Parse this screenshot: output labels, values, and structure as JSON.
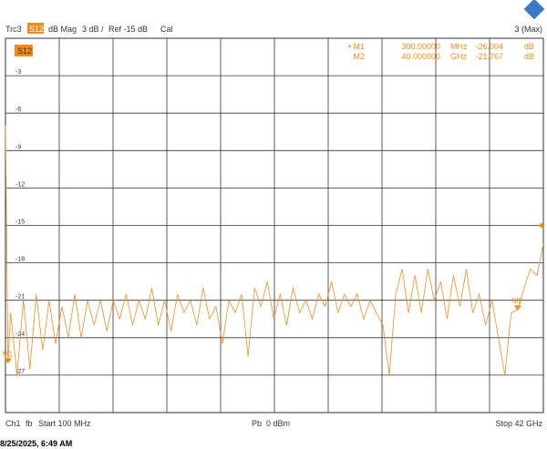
{
  "chart_data": {
    "type": "line",
    "header": {
      "trace": "Trc3",
      "param": "S12",
      "format": "dB Mag",
      "scale": "3 dB /",
      "ref": "Ref -15 dB",
      "cal": "Cal",
      "right": "3 (Max)"
    },
    "trace_label": "S12",
    "ref_level": -15,
    "color": "#f08c1e",
    "xlim": [
      0.1,
      42
    ],
    "ylim": [
      -30,
      0
    ],
    "yticks": [
      -3,
      -6,
      -9,
      -12,
      -15,
      -18,
      -21,
      -24,
      -27
    ],
    "grid_divisions": 10,
    "x": [
      0.1,
      0.3,
      0.5,
      1,
      1.5,
      2,
      2.5,
      3,
      3.5,
      4,
      4.5,
      5,
      5.5,
      6,
      6.5,
      7,
      7.5,
      8,
      8.5,
      9,
      9.5,
      10,
      10.5,
      11,
      11.5,
      12,
      12.5,
      13,
      13.5,
      14,
      14.5,
      15,
      15.5,
      16,
      16.5,
      17,
      17.5,
      18,
      18.5,
      19,
      19.5,
      20,
      20.5,
      21,
      21.5,
      22,
      22.5,
      23,
      23.5,
      24,
      24.5,
      25,
      25.5,
      26,
      26.5,
      27,
      27.5,
      28,
      28.5,
      29,
      29.5,
      30,
      30.5,
      31,
      31.5,
      32,
      32.5,
      33,
      33.5,
      34,
      34.5,
      35,
      35.5,
      36,
      36.5,
      37,
      37.5,
      38,
      38.5,
      39,
      39.5,
      40,
      40.5,
      41,
      41.5,
      42
    ],
    "values": [
      -7,
      -26,
      -22,
      -27,
      -21,
      -26.5,
      -20.5,
      -25,
      -21,
      -24.5,
      -21.5,
      -24,
      -20.5,
      -24,
      -21,
      -23,
      -21,
      -23.5,
      -21,
      -22.5,
      -20.5,
      -23,
      -21,
      -22.5,
      -20,
      -23,
      -21,
      -23.5,
      -20.5,
      -22,
      -21,
      -23,
      -20,
      -22.5,
      -21.5,
      -24.5,
      -21,
      -22,
      -20.5,
      -25.5,
      -20,
      -21.5,
      -19.5,
      -22.5,
      -20.5,
      -23,
      -20,
      -22,
      -21,
      -22.5,
      -20.5,
      -21.5,
      -19.5,
      -22,
      -20.5,
      -21.5,
      -20.5,
      -22.5,
      -21,
      -22,
      -23,
      -27,
      -20.5,
      -18.5,
      -22,
      -19,
      -22,
      -18.5,
      -21,
      -19.5,
      -22.5,
      -19,
      -21.5,
      -18.5,
      -22,
      -20.5,
      -23,
      -21,
      -24,
      -27,
      -22,
      -21.767,
      -20,
      -18.5,
      -19,
      -16.5
    ],
    "markers": [
      {
        "name": "M1",
        "x": 0.3,
        "y": -26.004
      },
      {
        "name": "M2",
        "x": 40,
        "y": -21.767
      }
    ],
    "marker_table": [
      [
        "• M1",
        "300.00000",
        "MHz",
        "-26.004",
        "dB"
      ],
      [
        "M2",
        "40.000000",
        "GHz",
        "-21.767",
        "dB"
      ]
    ],
    "footer": {
      "ch": "Ch1",
      "fb": "fb",
      "start": "Start 100 MHz",
      "pb": "Pb",
      "power": "0 dBm",
      "stop": "Stop 42 GHz"
    },
    "timestamp": "8/25/2025, 6:49 AM"
  }
}
